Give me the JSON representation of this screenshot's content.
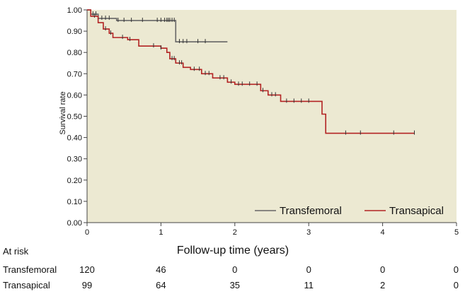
{
  "chart_data": {
    "type": "line",
    "title": "",
    "xlabel": "Follow-up time (years)",
    "ylabel": "Survival rate",
    "xlim": [
      0,
      5
    ],
    "ylim": [
      0,
      1
    ],
    "x_ticks": [
      "0",
      "1",
      "2",
      "3",
      "4",
      "5"
    ],
    "y_ticks": [
      "0.00",
      "0.10",
      "0.20",
      "0.30",
      "0.40",
      "0.50",
      "0.60",
      "0.70",
      "0.80",
      "0.90",
      "1.00"
    ],
    "grid": false,
    "legend": "bottom-right",
    "series": [
      {
        "name": "Transfemoral",
        "color": "#666666",
        "steps": [
          [
            0,
            1.0
          ],
          [
            0.05,
            0.98
          ],
          [
            0.15,
            0.96
          ],
          [
            0.4,
            0.95
          ],
          [
            1.2,
            0.85
          ],
          [
            1.9,
            0.85
          ]
        ],
        "censored": [
          0.08,
          0.12,
          0.15,
          0.2,
          0.25,
          0.3,
          0.42,
          0.5,
          0.6,
          0.75,
          0.95,
          1.0,
          1.05,
          1.08,
          1.1,
          1.12,
          1.15,
          1.18,
          1.25,
          1.3,
          1.35,
          1.5,
          1.6
        ]
      },
      {
        "name": "Transapical",
        "color": "#b22222",
        "steps": [
          [
            0,
            1.0
          ],
          [
            0.05,
            0.97
          ],
          [
            0.15,
            0.94
          ],
          [
            0.22,
            0.91
          ],
          [
            0.3,
            0.89
          ],
          [
            0.35,
            0.87
          ],
          [
            0.55,
            0.86
          ],
          [
            0.7,
            0.83
          ],
          [
            1.0,
            0.82
          ],
          [
            1.08,
            0.8
          ],
          [
            1.12,
            0.77
          ],
          [
            1.2,
            0.75
          ],
          [
            1.3,
            0.73
          ],
          [
            1.4,
            0.72
          ],
          [
            1.55,
            0.7
          ],
          [
            1.7,
            0.68
          ],
          [
            1.9,
            0.66
          ],
          [
            2.0,
            0.65
          ],
          [
            2.35,
            0.62
          ],
          [
            2.45,
            0.6
          ],
          [
            2.62,
            0.57
          ],
          [
            3.18,
            0.51
          ],
          [
            3.23,
            0.42
          ],
          [
            4.43,
            0.42
          ]
        ],
        "censored": [
          0.1,
          0.25,
          0.32,
          0.48,
          0.58,
          0.9,
          1.0,
          1.15,
          1.18,
          1.25,
          1.28,
          1.45,
          1.52,
          1.6,
          1.65,
          1.8,
          1.85,
          1.95,
          2.05,
          2.1,
          2.2,
          2.3,
          2.38,
          2.5,
          2.55,
          2.7,
          2.8,
          2.9,
          3.0,
          3.5,
          3.7,
          4.15,
          4.43
        ]
      }
    ],
    "at_risk": {
      "label": "At risk",
      "times": [
        0,
        1,
        2,
        3,
        4,
        5
      ],
      "rows": [
        {
          "name": "Transfemoral",
          "values": [
            "120",
            "46",
            "0",
            "0",
            "0",
            "0"
          ]
        },
        {
          "name": "Transapical",
          "values": [
            "99",
            "64",
            "35",
            "11",
            "2",
            "0"
          ]
        }
      ]
    },
    "colors": {
      "plot_bg": "#ece9d2",
      "axis": "#444444"
    }
  }
}
